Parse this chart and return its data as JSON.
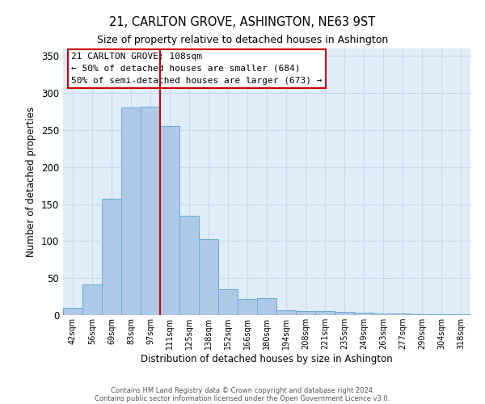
{
  "title": "21, CARLTON GROVE, ASHINGTON, NE63 9ST",
  "subtitle": "Size of property relative to detached houses in Ashington",
  "xlabel": "Distribution of detached houses by size in Ashington",
  "ylabel": "Number of detached properties",
  "bar_labels": [
    "42sqm",
    "56sqm",
    "69sqm",
    "83sqm",
    "97sqm",
    "111sqm",
    "125sqm",
    "138sqm",
    "152sqm",
    "166sqm",
    "180sqm",
    "194sqm",
    "208sqm",
    "221sqm",
    "235sqm",
    "249sqm",
    "263sqm",
    "277sqm",
    "290sqm",
    "304sqm",
    "318sqm"
  ],
  "bar_heights": [
    10,
    42,
    157,
    280,
    282,
    255,
    134,
    103,
    35,
    22,
    23,
    7,
    6,
    5,
    4,
    3,
    2,
    2,
    1,
    1,
    1
  ],
  "bar_color": "#aec9e8",
  "bar_edge_color": "#6aaad4",
  "vline_color": "#cc0000",
  "annotation_title": "21 CARLTON GROVE: 108sqm",
  "annotation_line1": "← 50% of detached houses are smaller (684)",
  "annotation_line2": "50% of semi-detached houses are larger (673) →",
  "annotation_box_color": "#ffffff",
  "annotation_border_color": "#cc0000",
  "ylim": [
    0,
    360
  ],
  "yticks": [
    0,
    50,
    100,
    150,
    200,
    250,
    300,
    350
  ],
  "footer1": "Contains HM Land Registry data © Crown copyright and database right 2024.",
  "footer2": "Contains public sector information licensed under the Open Government Licence v3.0.",
  "background_color": "#ffffff",
  "plot_bg_color": "#e0ecf8",
  "grid_color": "#c8d8ec"
}
